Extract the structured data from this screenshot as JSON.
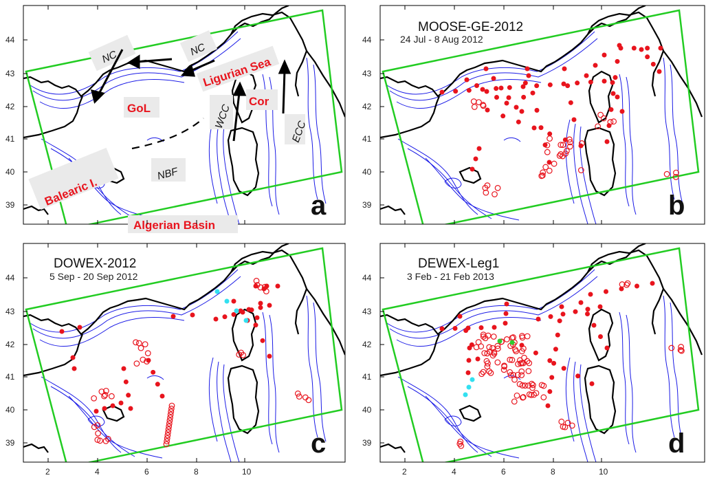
{
  "figure": {
    "x_ticks": [
      "2",
      "4",
      "6",
      "8",
      "10"
    ],
    "y_ticks": [
      "44",
      "43",
      "42",
      "41",
      "40",
      "39"
    ],
    "colors": {
      "domain_box": "#22cc22",
      "isobaths": "#1a1ae6",
      "coastline": "#000000",
      "station": "#e8141d",
      "cyan_station": "#33e0f0",
      "green_station": "#2ecc2e"
    }
  },
  "panels": [
    {
      "letter": "a",
      "title": "",
      "date": "",
      "labels": {
        "nc1": "NC",
        "nc2": "NC",
        "ligurian": "Ligurian Sea",
        "gol": "GoL",
        "cor": "Cor",
        "wcc": "WCC",
        "ecc": "ECC",
        "balearic": "Balearic I.",
        "nbf": "NBF",
        "algerian": "Algerian Basin"
      }
    },
    {
      "letter": "b",
      "title": "MOOSE-GE-2012",
      "date": "24 Jul - 8 Aug 2012"
    },
    {
      "letter": "c",
      "title": "DOWEX-2012",
      "date": "5 Sep - 20 Sep 2012"
    },
    {
      "letter": "d",
      "title": "DEWEX-Leg1",
      "date": "3 Feb - 21 Feb 2013"
    }
  ]
}
